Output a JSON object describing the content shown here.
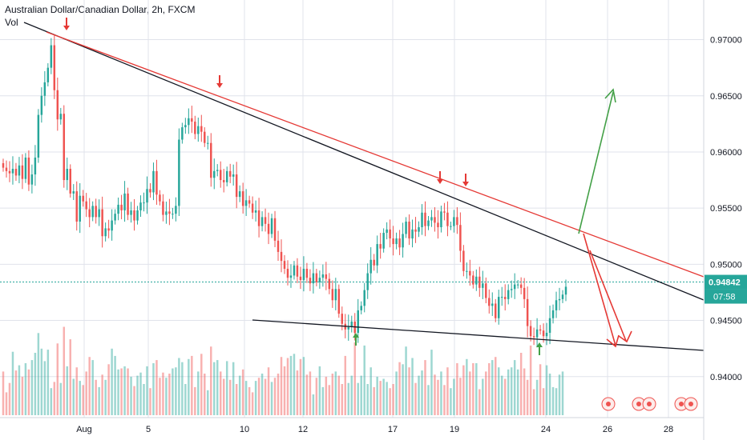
{
  "chart_data": {
    "type": "candlestick",
    "title": "Australian Dollar/Canadian Dollar, 2h, FXCM",
    "volume_label": "Vol",
    "y_ticks": [
      "0.97000",
      "0.96500",
      "0.96000",
      "0.95500",
      "0.95000",
      "0.94500",
      "0.94000"
    ],
    "y_tick_values": [
      0.97,
      0.965,
      0.96,
      0.955,
      0.95,
      0.945,
      0.94
    ],
    "ylim": [
      0.93635,
      0.97353
    ],
    "x_ticks": [
      "Aug",
      "5",
      "10",
      "12",
      "17",
      "19",
      "24",
      "26",
      "28"
    ],
    "current_price": "0.94842",
    "current_price_value": 0.94842,
    "countdown": "07:58",
    "close_series": [
      0.9586,
      0.9583,
      0.9581,
      0.9585,
      0.9579,
      0.9588,
      0.9576,
      0.9595,
      0.9571,
      0.958,
      0.9595,
      0.9633,
      0.965,
      0.9662,
      0.9675,
      0.9695,
      0.9655,
      0.9629,
      0.9634,
      0.9575,
      0.9585,
      0.9563,
      0.9565,
      0.9538,
      0.9561,
      0.9556,
      0.9549,
      0.9542,
      0.9552,
      0.9542,
      0.9549,
      0.9525,
      0.9532,
      0.953,
      0.9539,
      0.9545,
      0.9553,
      0.9548,
      0.9563,
      0.9544,
      0.9548,
      0.9539,
      0.9548,
      0.9555,
      0.9555,
      0.9567,
      0.9564,
      0.9583,
      0.9562,
      0.9556,
      0.9544,
      0.9547,
      0.9545,
      0.9545,
      0.9552,
      0.9611,
      0.9622,
      0.9624,
      0.963,
      0.9627,
      0.9616,
      0.9623,
      0.9618,
      0.9608,
      0.9608,
      0.9577,
      0.9583,
      0.9584,
      0.9575,
      0.9573,
      0.9583,
      0.9578,
      0.958,
      0.956,
      0.9565,
      0.9552,
      0.9557,
      0.9554,
      0.9546,
      0.9548,
      0.9534,
      0.9542,
      0.9536,
      0.9527,
      0.9541,
      0.9521,
      0.9511,
      0.9503,
      0.9496,
      0.9488,
      0.949,
      0.9499,
      0.9489,
      0.9486,
      0.9496,
      0.9488,
      0.9483,
      0.9492,
      0.9484,
      0.9488,
      0.9491,
      0.9487,
      0.9478,
      0.9468,
      0.9478,
      0.9456,
      0.9447,
      0.9442,
      0.9444,
      0.9449,
      0.9439,
      0.9459,
      0.9463,
      0.9477,
      0.9492,
      0.9504,
      0.9499,
      0.9518,
      0.9514,
      0.9528,
      0.9531,
      0.9523,
      0.9518,
      0.9523,
      0.9515,
      0.9527,
      0.9538,
      0.9523,
      0.9531,
      0.9529,
      0.9533,
      0.9546,
      0.9534,
      0.9539,
      0.9542,
      0.9537,
      0.9533,
      0.9547,
      0.9546,
      0.9534,
      0.9534,
      0.9542,
      0.9535,
      0.9512,
      0.9494,
      0.9494,
      0.949,
      0.9482,
      0.9489,
      0.9479,
      0.9483,
      0.947,
      0.9463,
      0.9465,
      0.9452,
      0.9471,
      0.9471,
      0.9469,
      0.9477,
      0.9478,
      0.9482,
      0.9482,
      0.9479,
      0.9469,
      0.9445,
      0.9436,
      0.9435,
      0.9442,
      0.9441,
      0.9436,
      0.9439,
      0.9452,
      0.9459,
      0.9468,
      0.9469,
      0.9473,
      0.948
    ],
    "volume_series": [
      0.42,
      0.22,
      0.31,
      0.61,
      0.43,
      0.48,
      0.37,
      0.5,
      0.44,
      0.53,
      0.6,
      0.79,
      0.64,
      0.52,
      0.63,
      0.26,
      0.32,
      0.69,
      0.31,
      0.85,
      0.47,
      0.73,
      0.35,
      0.46,
      0.33,
      0.29,
      0.42,
      0.56,
      0.53,
      0.34,
      0.27,
      0.39,
      0.34,
      0.49,
      0.64,
      0.57,
      0.44,
      0.45,
      0.47,
      0.45,
      0.37,
      0.28,
      0.38,
      0.41,
      0.3,
      0.47,
      0.26,
      0.5,
      0.53,
      0.36,
      0.41,
      0.36,
      0.4,
      0.45,
      0.46,
      0.55,
      0.51,
      0.3,
      0.54,
      0.57,
      0.27,
      0.42,
      0.59,
      0.4,
      0.24,
      0.66,
      0.51,
      0.53,
      0.42,
      0.35,
      0.52,
      0.34,
      0.51,
      0.3,
      0.38,
      0.44,
      0.33,
      0.27,
      0.22,
      0.33,
      0.36,
      0.4,
      0.35,
      0.46,
      0.32,
      0.36,
      0.4,
      0.56,
      0.47,
      0.55,
      0.57,
      0.59,
      0.43,
      0.54,
      0.56,
      0.39,
      0.42,
      0.2,
      0.36,
      0.47,
      0.27,
      0.37,
      0.29,
      0.4,
      0.42,
      0.38,
      0.3,
      0.57,
      0.31,
      0.38,
      0.7,
      0.31,
      0.38,
      0.67,
      0.3,
      0.46,
      0.27,
      0.37,
      0.33,
      0.35,
      0.32,
      0.26,
      0.3,
      0.42,
      0.51,
      0.49,
      0.66,
      0.46,
      0.55,
      0.31,
      0.38,
      0.43,
      0.53,
      0.29,
      0.63,
      0.39,
      0.34,
      0.42,
      0.29,
      0.46,
      0.26,
      0.35,
      0.5,
      0.36,
      0.48,
      0.54,
      0.42,
      0.5,
      0.5,
      0.25,
      0.35,
      0.42,
      0.5,
      0.53,
      0.56,
      0.46,
      0.38,
      0.35,
      0.44,
      0.46,
      0.53,
      0.44,
      0.6,
      0.45,
      0.34,
      0.67,
      0.25,
      0.34,
      0.49,
      0.26,
      0.48,
      0.4,
      0.27,
      0.26,
      0.39,
      0.42
    ],
    "colors": {
      "up": "#26a69a",
      "down": "#ef5350",
      "price_line": "#26a69a",
      "trend_black": "#131722",
      "trend_red": "#e53935",
      "arrow_green": "#43a047",
      "arrow_red": "#e53935",
      "grid": "#e0e3eb"
    }
  }
}
